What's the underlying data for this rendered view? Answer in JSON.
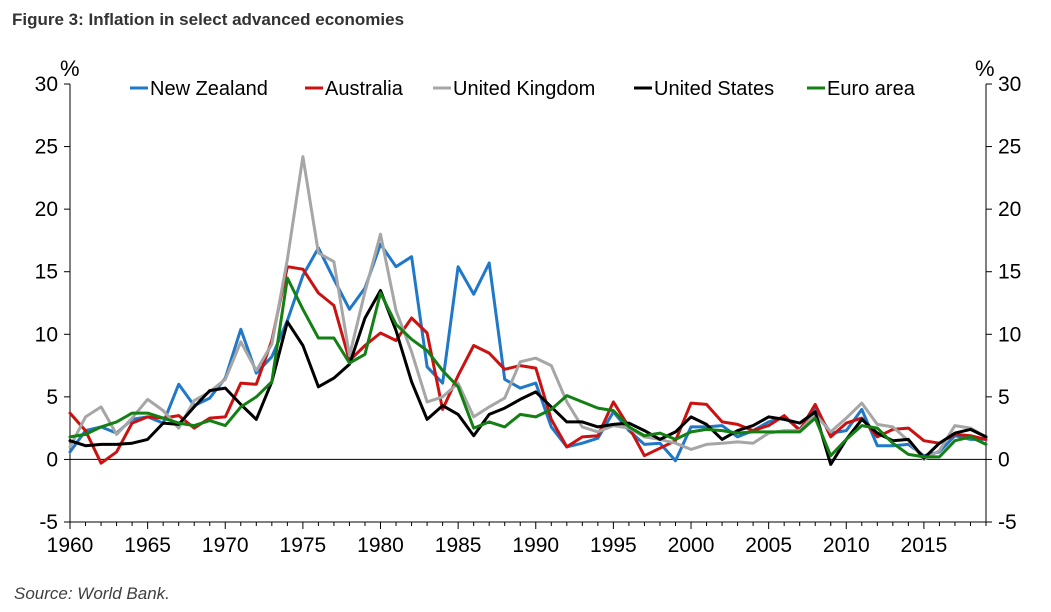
{
  "figure": {
    "title": "Figure 3: Inflation in select advanced economies",
    "source": "Source: World Bank."
  },
  "chart_data": {
    "type": "line",
    "title": "Figure 3: Inflation in select advanced economies",
    "ylabel_left": "%",
    "ylabel_right": "%",
    "xlim": [
      1960,
      2019
    ],
    "ylim": [
      -5,
      30
    ],
    "x_ticks": [
      "1960",
      "1965",
      "1970",
      "1975",
      "1980",
      "1985",
      "1990",
      "1995",
      "2000",
      "2005",
      "2010",
      "2015"
    ],
    "y_ticks": [
      "-5",
      "0",
      "5",
      "10",
      "15",
      "20",
      "25",
      "30"
    ],
    "legend_position": "top",
    "x": [
      1960,
      1961,
      1962,
      1963,
      1964,
      1965,
      1966,
      1967,
      1968,
      1969,
      1970,
      1971,
      1972,
      1973,
      1974,
      1975,
      1976,
      1977,
      1978,
      1979,
      1980,
      1981,
      1982,
      1983,
      1984,
      1985,
      1986,
      1987,
      1988,
      1989,
      1990,
      1991,
      1992,
      1993,
      1994,
      1995,
      1996,
      1997,
      1998,
      1999,
      2000,
      2001,
      2002,
      2003,
      2004,
      2005,
      2006,
      2007,
      2008,
      2009,
      2010,
      2011,
      2012,
      2013,
      2014,
      2015,
      2016,
      2017,
      2018,
      2019
    ],
    "series": [
      {
        "name": "New Zealand",
        "color": "#1f78c8",
        "values": [
          0.6,
          2.3,
          2.6,
          2.1,
          3.2,
          3.4,
          2.9,
          6.0,
          4.3,
          4.9,
          6.5,
          10.4,
          6.9,
          8.2,
          11.1,
          14.7,
          16.9,
          14.4,
          12.0,
          13.7,
          17.2,
          15.4,
          16.2,
          7.4,
          6.1,
          15.4,
          13.2,
          15.7,
          6.4,
          5.7,
          6.1,
          2.6,
          1.0,
          1.3,
          1.7,
          3.8,
          2.3,
          1.2,
          1.3,
          -0.1,
          2.6,
          2.6,
          2.7,
          1.8,
          2.3,
          3.0,
          3.4,
          2.4,
          4.0,
          2.1,
          2.3,
          4.0,
          1.1,
          1.1,
          1.2,
          0.3,
          0.6,
          1.9,
          1.6,
          1.6
        ]
      },
      {
        "name": "Australia",
        "color": "#cc1111",
        "values": [
          3.7,
          2.3,
          -0.3,
          0.6,
          2.9,
          3.4,
          3.3,
          3.5,
          2.5,
          3.3,
          3.4,
          6.1,
          6.0,
          9.5,
          15.4,
          15.2,
          13.3,
          12.3,
          7.9,
          9.1,
          10.1,
          9.5,
          11.3,
          10.1,
          4.0,
          6.7,
          9.1,
          8.5,
          7.2,
          7.5,
          7.3,
          3.2,
          1.0,
          1.8,
          1.9,
          4.6,
          2.6,
          0.3,
          0.9,
          1.5,
          4.5,
          4.4,
          3.0,
          2.8,
          2.3,
          2.7,
          3.5,
          2.3,
          4.4,
          1.8,
          2.9,
          3.3,
          1.8,
          2.4,
          2.5,
          1.5,
          1.3,
          2.0,
          1.9,
          1.6
        ]
      },
      {
        "name": "United Kingdom",
        "color": "#a6a6a6",
        "values": [
          1.0,
          3.4,
          4.2,
          2.0,
          3.3,
          4.8,
          3.9,
          2.5,
          4.7,
          5.4,
          6.4,
          9.4,
          7.1,
          9.2,
          16.0,
          24.2,
          16.5,
          15.8,
          8.3,
          13.4,
          18.0,
          11.9,
          8.6,
          4.6,
          5.0,
          6.1,
          3.4,
          4.2,
          4.9,
          7.8,
          8.1,
          7.5,
          4.6,
          2.6,
          2.2,
          2.7,
          2.5,
          1.8,
          1.6,
          1.3,
          0.8,
          1.2,
          1.3,
          1.4,
          1.3,
          2.1,
          2.3,
          2.3,
          3.6,
          2.2,
          3.3,
          4.5,
          2.8,
          2.6,
          1.5,
          0.0,
          0.7,
          2.7,
          2.5,
          1.8
        ]
      },
      {
        "name": "United States",
        "color": "#000000",
        "values": [
          1.5,
          1.1,
          1.2,
          1.2,
          1.3,
          1.6,
          2.9,
          2.8,
          4.2,
          5.5,
          5.7,
          4.4,
          3.2,
          6.2,
          11.0,
          9.1,
          5.8,
          6.5,
          7.6,
          11.3,
          13.5,
          10.3,
          6.2,
          3.2,
          4.3,
          3.6,
          1.9,
          3.6,
          4.1,
          4.8,
          5.4,
          4.2,
          3.0,
          3.0,
          2.6,
          2.8,
          2.9,
          2.3,
          1.6,
          2.2,
          3.4,
          2.8,
          1.6,
          2.3,
          2.7,
          3.4,
          3.2,
          2.9,
          3.8,
          -0.4,
          1.6,
          3.2,
          2.1,
          1.5,
          1.6,
          0.1,
          1.3,
          2.1,
          2.4,
          1.8
        ]
      },
      {
        "name": "Euro area",
        "color": "#138013",
        "values": [
          1.8,
          2.0,
          2.6,
          3.0,
          3.7,
          3.7,
          3.3,
          2.9,
          2.7,
          3.1,
          2.7,
          4.2,
          5.0,
          6.2,
          14.5,
          12.0,
          9.7,
          9.7,
          7.7,
          8.4,
          13.3,
          10.8,
          9.6,
          8.7,
          7.1,
          5.8,
          2.5,
          3.0,
          2.6,
          3.6,
          3.4,
          4.0,
          5.1,
          4.6,
          4.1,
          3.9,
          2.6,
          1.9,
          2.1,
          1.6,
          2.2,
          2.4,
          2.3,
          2.1,
          2.2,
          2.2,
          2.2,
          2.2,
          3.3,
          0.3,
          1.6,
          2.7,
          2.5,
          1.3,
          0.4,
          0.2,
          0.2,
          1.5,
          1.8,
          1.2
        ]
      }
    ]
  }
}
